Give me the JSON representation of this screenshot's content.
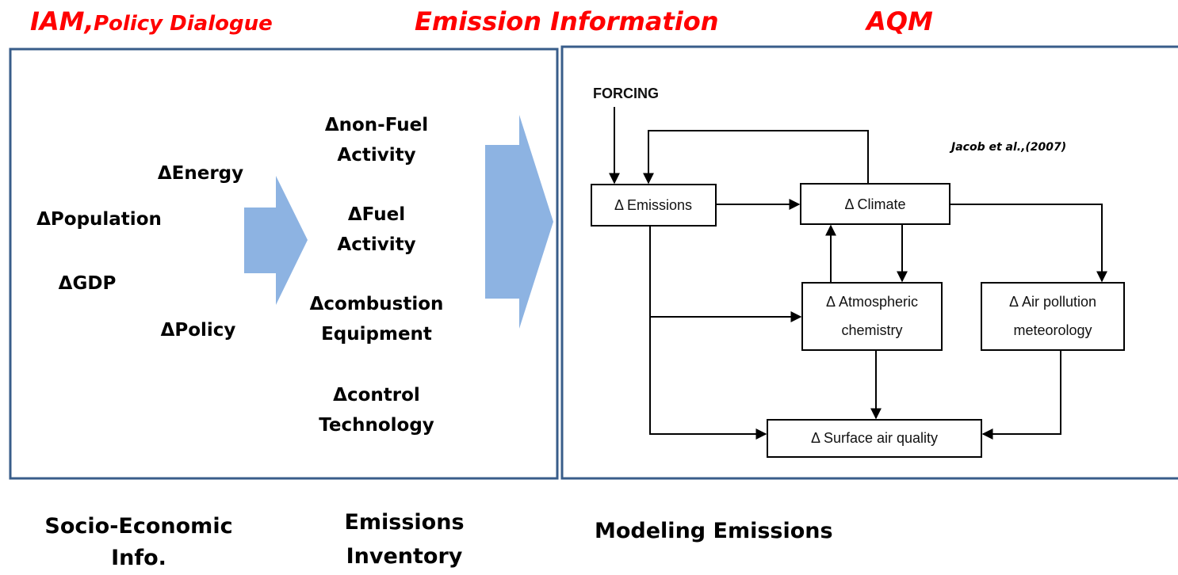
{
  "headers": {
    "iam": "IAM,",
    "policy": "Policy Dialogue",
    "emission": "Emission Information",
    "aqm": "AQM"
  },
  "socio_economic": [
    "ΔEnergy",
    "ΔPopulation",
    "ΔGDP",
    "ΔPolicy"
  ],
  "inventory_items": [
    [
      "Δnon-Fuel",
      "Activity"
    ],
    [
      "ΔFuel",
      "Activity"
    ],
    [
      "Δcombustion",
      "Equipment"
    ],
    [
      "Δcontrol",
      "Technology"
    ]
  ],
  "diagram": {
    "forcing": "FORCING",
    "citation": "Jacob et al.,(2007)",
    "nodes": [
      [
        "Δ Emissions"
      ],
      [
        "Δ  Climate"
      ],
      [
        "Δ Atmospheric",
        "chemistry"
      ],
      [
        "Δ Air pollution",
        "meteorology"
      ],
      [
        "Δ Surface air quality"
      ]
    ]
  },
  "footer": {
    "socio": [
      "Socio-Economic",
      "Info."
    ],
    "inventory": [
      "Emissions",
      "Inventory"
    ],
    "modeling": "Modeling Emissions"
  }
}
